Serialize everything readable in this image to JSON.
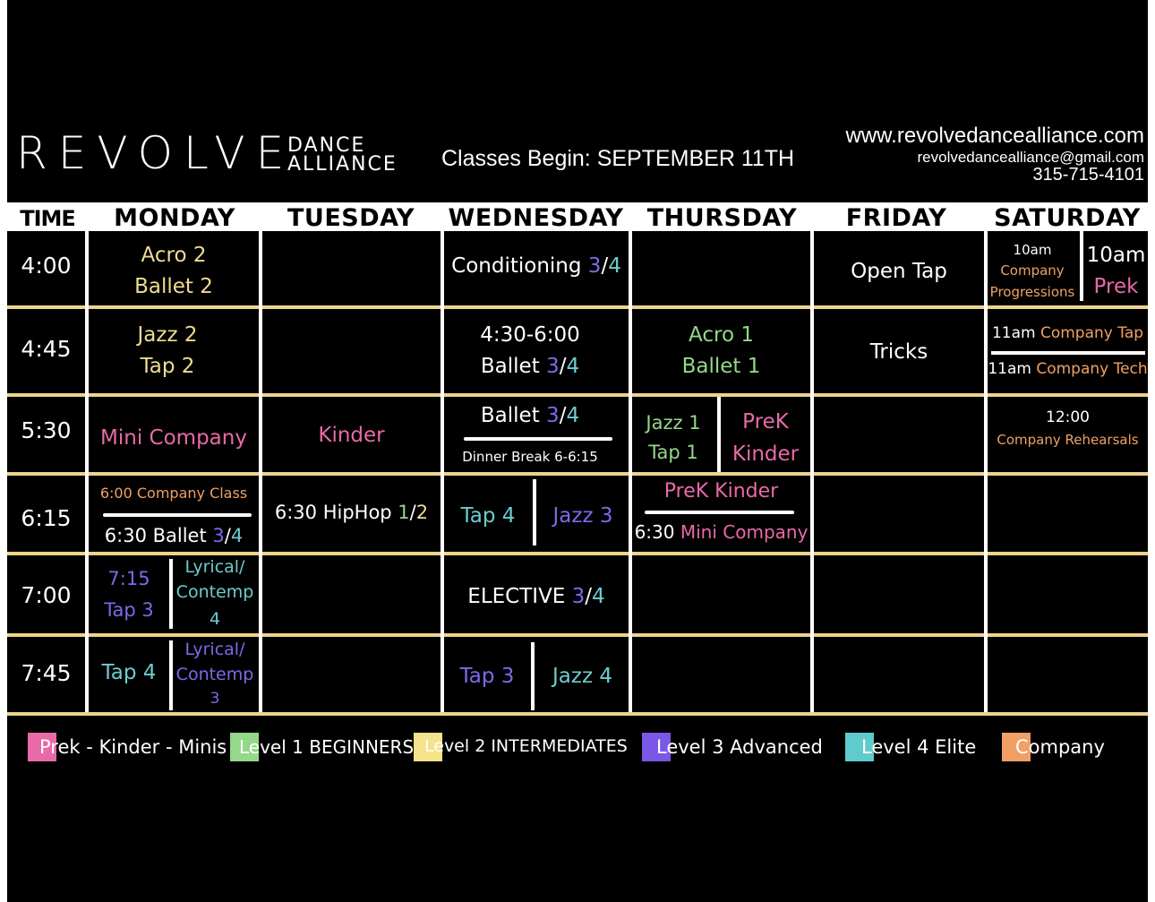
{
  "brand": {
    "name": "REVOLVE",
    "line1": "DANCE",
    "line2": "ALLIANCE"
  },
  "header": {
    "classes_begin": "Classes Begin: SEPTEMBER 11TH",
    "website": "www.revolvedancealliance.com",
    "email": "revolvedancealliance@gmail.com",
    "phone": "315-715-4101"
  },
  "columns": {
    "time": "TIME",
    "days": [
      "MONDAY",
      "TUESDAY",
      "WEDNESDAY",
      "THURSDAY",
      "FRIDAY",
      "SATURDAY"
    ]
  },
  "times": [
    "4:00",
    "4:45",
    "5:30",
    "6:15",
    "7:00",
    "7:45"
  ],
  "cells": {
    "r1": {
      "mon_a": "Acro 2",
      "mon_b": "Ballet 2",
      "wed_name": "Conditioning ",
      "wed_l1": "3",
      "wed_sep": "/",
      "wed_l2": "4",
      "fri": "Open Tap",
      "sat_a1": "10am",
      "sat_a2": "Company",
      "sat_a3": "Progressions",
      "sat_b1": "10am",
      "sat_b2": "Prek"
    },
    "r2": {
      "mon_a": "Jazz 2",
      "mon_b": "Tap 2",
      "wed_time": "4:30-6:00",
      "wed_name": "Ballet ",
      "wed_l1": "3",
      "wed_sep": "/",
      "wed_l2": "4",
      "thu_a": "Acro 1",
      "thu_b": "Ballet 1",
      "fri": "Tricks",
      "sat_a_time": "11am ",
      "sat_a_name": "Company Tap",
      "sat_b_time": "11am ",
      "sat_b_name": "Company Tech"
    },
    "r3": {
      "mon": "Mini Company",
      "tue": "Kinder",
      "wed_name": "Ballet ",
      "wed_l1": "3",
      "wed_sep": "/",
      "wed_l2": "4",
      "wed_note": "Dinner Break 6-6:15",
      "thu_a1": "Jazz 1",
      "thu_a2": "Tap 1",
      "thu_b1": "PreK",
      "thu_b2": "Kinder",
      "sat_time": "12:00",
      "sat_name": "Company Rehearsals"
    },
    "r4": {
      "mon_a": "6:00 Company Class",
      "mon_b_name": "6:30 Ballet ",
      "mon_b_l1": "3",
      "mon_b_sep": "/",
      "mon_b_l2": "4",
      "tue_name": "6:30 HipHop ",
      "tue_l1": "1",
      "tue_sep": "/",
      "tue_l2": "2",
      "wed_a": "Tap 4",
      "wed_b": "Jazz 3",
      "thu_a": "PreK Kinder",
      "thu_b_time": "6:30 ",
      "thu_b_name": "Mini Company"
    },
    "r5": {
      "mon_a1": "7:15",
      "mon_a2": "Tap 3",
      "mon_b1": "Lyrical/",
      "mon_b2": "Contemp",
      "mon_b3": "4",
      "wed_name": "ELECTIVE ",
      "wed_l1": "3",
      "wed_sep": "/",
      "wed_l2": "4"
    },
    "r6": {
      "mon_a": "Tap 4",
      "mon_b1": "Lyrical/",
      "mon_b2": "Contemp",
      "mon_b3": "3",
      "wed_a": "Tap 3",
      "wed_b": "Jazz 4"
    }
  },
  "legend": [
    {
      "label": "Prek - Kinder - Minis",
      "color": "#e86aa8"
    },
    {
      "label": "Level 1 BEGINNERS",
      "color": "#94d889"
    },
    {
      "label": "Level 2 INTERMEDIATES",
      "color": "#f6e28a"
    },
    {
      "label": "Level 3 Advanced",
      "color": "#7a57e6"
    },
    {
      "label": "Level 4 Elite",
      "color": "#5fcbcd"
    },
    {
      "label": "Company",
      "color": "#f0a064"
    }
  ],
  "colors": {
    "background": "#000000",
    "grid": "#ecd48c",
    "pink": "#e86aa8",
    "green": "#94d889",
    "yellow": "#f0dc91",
    "purple": "#8167ea",
    "teal": "#6ccccf",
    "orange": "#f0a064"
  }
}
